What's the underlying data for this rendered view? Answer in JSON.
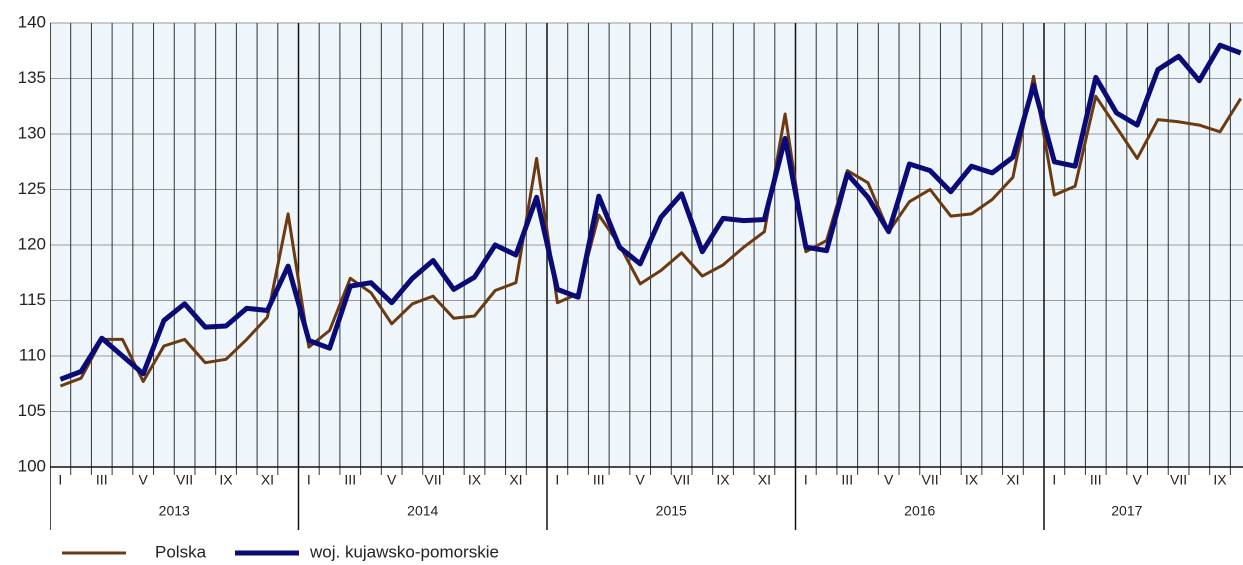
{
  "chart_data": {
    "type": "line",
    "categories": [
      "I",
      null,
      "III",
      null,
      "V",
      null,
      "VII",
      null,
      "IX",
      null,
      "XI",
      null,
      "I",
      null,
      "III",
      null,
      "V",
      null,
      "VII",
      null,
      "IX",
      null,
      "XI",
      null,
      "I",
      null,
      "III",
      null,
      "V",
      null,
      "VII",
      null,
      "IX",
      null,
      "XI",
      null,
      "I",
      null,
      "III",
      null,
      "V",
      null,
      "VII",
      null,
      "IX",
      null,
      "XI",
      null,
      "I",
      null,
      "III",
      null,
      "V",
      null,
      "VII",
      null,
      "IX",
      null
    ],
    "years": [
      "2013",
      "2014",
      "2015",
      "2016",
      "2017"
    ],
    "series": [
      {
        "name": "Polska",
        "color": "#6b3a10",
        "values": [
          107.3,
          108.0,
          111.5,
          111.5,
          107.7,
          110.9,
          111.5,
          109.4,
          109.7,
          111.5,
          113.5,
          122.8,
          110.8,
          112.3,
          117.0,
          115.7,
          112.9,
          114.7,
          115.4,
          113.4,
          113.6,
          115.9,
          116.6,
          127.8,
          114.8,
          115.6,
          122.7,
          120.0,
          116.5,
          117.7,
          119.3,
          117.2,
          118.2,
          119.8,
          121.2,
          131.8,
          119.4,
          120.4,
          126.7,
          125.6,
          121.2,
          123.9,
          125.0,
          122.6,
          122.8,
          124.1,
          126.1,
          135.2,
          124.5,
          125.3,
          133.4,
          130.6,
          127.8,
          131.3,
          131.1,
          130.8,
          130.2,
          133.2
        ]
      },
      {
        "name": "woj. kujawsko-pomorskie",
        "color": "#0b0b78",
        "values": [
          107.9,
          108.6,
          111.6,
          110.0,
          108.4,
          113.2,
          114.7,
          112.6,
          112.7,
          114.3,
          114.1,
          118.1,
          111.4,
          110.7,
          116.3,
          116.6,
          114.8,
          117.0,
          118.6,
          116.0,
          117.1,
          120.0,
          119.1,
          124.3,
          116.0,
          115.3,
          124.4,
          119.8,
          118.3,
          122.5,
          124.6,
          119.4,
          122.4,
          122.2,
          122.3,
          129.6,
          119.8,
          119.5,
          126.4,
          124.3,
          121.2,
          127.3,
          126.7,
          124.8,
          127.1,
          126.5,
          127.9,
          134.4,
          127.5,
          127.1,
          135.1,
          131.9,
          130.8,
          135.8,
          137.0,
          134.8,
          138.0,
          137.3
        ]
      }
    ],
    "ylim": [
      100,
      140
    ],
    "yticks": [
      100,
      105,
      110,
      115,
      120,
      125,
      130,
      135,
      140
    ],
    "grid": true
  }
}
